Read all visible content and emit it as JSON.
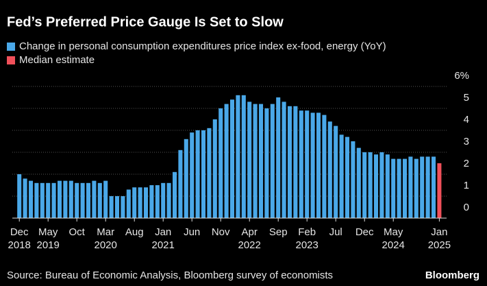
{
  "chart_data": {
    "type": "bar",
    "title": "Fed’s Preferred Price Gauge Is Set to Slow",
    "source": "Source: Bureau of Economic Analysis, Bloomberg survey of economists",
    "brand": "Bloomberg",
    "categories": [
      "Dec",
      null,
      null,
      null,
      null,
      "May",
      null,
      null,
      null,
      null,
      "Oct",
      null,
      null,
      null,
      null,
      "Mar",
      null,
      null,
      null,
      null,
      "Aug",
      null,
      null,
      null,
      null,
      "Jan",
      null,
      null,
      null,
      null,
      "Jun",
      null,
      null,
      null,
      null,
      "Nov",
      null,
      null,
      null,
      null,
      "Apr",
      null,
      null,
      null,
      null,
      "Sep",
      null,
      null,
      null,
      null,
      "Feb",
      null,
      null,
      null,
      null,
      "Jul",
      null,
      null,
      null,
      null,
      "Dec",
      null,
      null,
      null,
      null,
      "May",
      null,
      null,
      null,
      null,
      null,
      null,
      null,
      "Jan"
    ],
    "category_years": [
      "2018",
      null,
      null,
      null,
      null,
      "2019",
      null,
      null,
      null,
      null,
      null,
      null,
      null,
      null,
      null,
      "2020",
      null,
      null,
      null,
      null,
      null,
      null,
      null,
      null,
      null,
      "2021",
      null,
      null,
      null,
      null,
      null,
      null,
      null,
      null,
      null,
      null,
      null,
      null,
      null,
      null,
      "2022",
      null,
      null,
      null,
      null,
      null,
      null,
      null,
      null,
      null,
      "2023",
      null,
      null,
      null,
      null,
      null,
      null,
      null,
      null,
      null,
      null,
      null,
      null,
      null,
      null,
      "2024",
      null,
      null,
      null,
      null,
      null,
      null,
      null,
      "2025"
    ],
    "series": [
      {
        "name": "Change in personal consumption expenditures price index ex-food, energy (YoY)",
        "color": "#4aa8e8",
        "values": [
          2.0,
          1.8,
          1.7,
          1.6,
          1.6,
          1.6,
          1.6,
          1.7,
          1.7,
          1.7,
          1.6,
          1.6,
          1.6,
          1.7,
          1.6,
          1.7,
          1.0,
          1.0,
          1.0,
          1.3,
          1.4,
          1.4,
          1.4,
          1.5,
          1.5,
          1.6,
          1.6,
          2.1,
          3.1,
          3.6,
          3.9,
          4.0,
          4.0,
          4.1,
          4.5,
          5.0,
          5.2,
          5.4,
          5.6,
          5.6,
          5.3,
          5.2,
          5.2,
          5.0,
          5.2,
          5.5,
          5.3,
          5.1,
          5.1,
          4.9,
          4.9,
          4.8,
          4.8,
          4.7,
          4.4,
          4.2,
          3.8,
          3.7,
          3.5,
          3.2,
          3.0,
          3.0,
          2.9,
          3.0,
          2.9,
          2.7,
          2.7,
          2.7,
          2.8,
          2.7,
          2.8,
          2.8,
          2.8,
          null
        ]
      },
      {
        "name": "Median estimate",
        "color": "#f0505a",
        "values": [
          null,
          null,
          null,
          null,
          null,
          null,
          null,
          null,
          null,
          null,
          null,
          null,
          null,
          null,
          null,
          null,
          null,
          null,
          null,
          null,
          null,
          null,
          null,
          null,
          null,
          null,
          null,
          null,
          null,
          null,
          null,
          null,
          null,
          null,
          null,
          null,
          null,
          null,
          null,
          null,
          null,
          null,
          null,
          null,
          null,
          null,
          null,
          null,
          null,
          null,
          null,
          null,
          null,
          null,
          null,
          null,
          null,
          null,
          null,
          null,
          null,
          null,
          null,
          null,
          null,
          null,
          null,
          null,
          null,
          null,
          null,
          null,
          null,
          2.5
        ]
      }
    ],
    "ylim": [
      0,
      6
    ],
    "yticks": [
      0,
      1,
      2,
      3,
      4,
      5,
      {
        "value": 6,
        "label": "6%"
      }
    ],
    "grid": true
  }
}
